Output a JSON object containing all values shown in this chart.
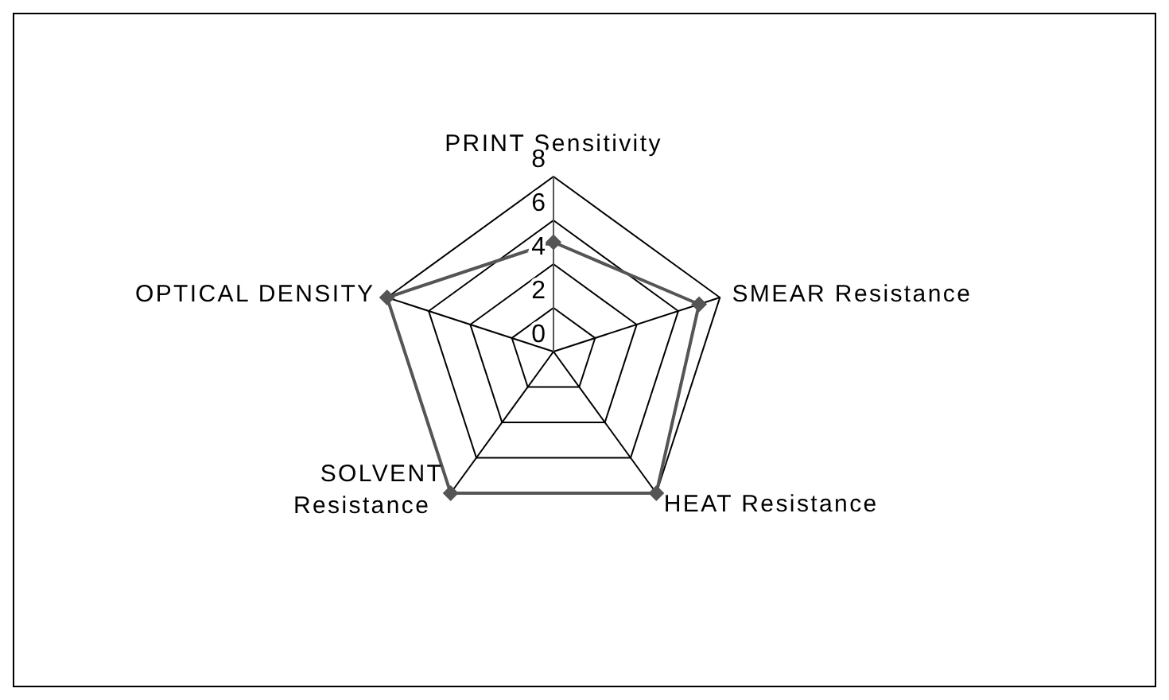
{
  "chart_data": {
    "type": "radar",
    "categories": [
      "PRINT Sensitivity",
      "SMEAR Resistance",
      "HEAT Resistance",
      "SOLVENT Resistance",
      "OPTICAL DENSITY"
    ],
    "series": [
      {
        "color": "#555555",
        "values": [
          5,
          7,
          8,
          8,
          8
        ]
      }
    ],
    "ylim": [
      0,
      8
    ],
    "yticks": [
      0,
      2,
      4,
      6,
      8
    ],
    "grid": true,
    "marker": "diamond",
    "legend": false
  }
}
